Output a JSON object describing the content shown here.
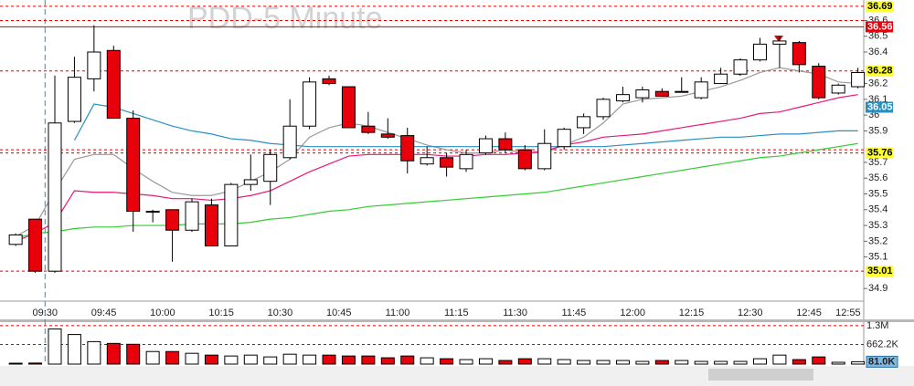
{
  "title": "PDD-5 Minute",
  "chart_data": {
    "type": "candlestick",
    "categories": [
      null,
      null,
      "09:30",
      null,
      null,
      "09:45",
      null,
      null,
      "10:00",
      null,
      null,
      "10:15",
      null,
      null,
      "10:30",
      null,
      null,
      "10:45",
      null,
      null,
      "11:00",
      null,
      null,
      "11:15",
      null,
      null,
      "11:30",
      null,
      null,
      "11:45",
      null,
      null,
      "12:00",
      null,
      null,
      "12:15",
      null,
      null,
      "12:30",
      null,
      null,
      "12:45",
      null,
      "12:55"
    ],
    "open": [
      35.18,
      35.34,
      35.01,
      35.96,
      36.23,
      36.41,
      35.98,
      35.39,
      35.4,
      35.27,
      35.43,
      35.17,
      35.56,
      35.58,
      35.73,
      35.93,
      36.23,
      36.18,
      35.93,
      35.88,
      35.87,
      35.69,
      35.73,
      35.66,
      35.76,
      35.85,
      35.78,
      35.66,
      35.8,
      35.92,
      35.99,
      36.09,
      36.11,
      36.15,
      36.15,
      36.11,
      36.2,
      36.26,
      36.35,
      36.45,
      36.46,
      36.31,
      36.14,
      36.18
    ],
    "high": [
      35.25,
      35.34,
      36.25,
      36.37,
      36.57,
      36.44,
      36.03,
      35.4,
      35.4,
      35.47,
      35.47,
      35.57,
      35.75,
      35.78,
      36.1,
      36.24,
      36.25,
      36.18,
      36.02,
      35.98,
      35.92,
      35.8,
      35.76,
      35.78,
      35.87,
      35.89,
      35.81,
      35.91,
      35.92,
      36.01,
      36.11,
      36.18,
      36.18,
      36.17,
      36.24,
      36.24,
      36.3,
      36.36,
      36.49,
      36.5,
      36.47,
      36.33,
      36.2,
      36.3
    ],
    "low": [
      35.17,
      35.0,
      35.0,
      35.95,
      36.15,
      35.98,
      35.26,
      35.32,
      35.07,
      35.26,
      35.17,
      35.17,
      35.52,
      35.43,
      35.72,
      35.91,
      36.19,
      35.92,
      35.88,
      35.85,
      35.63,
      35.68,
      35.61,
      35.64,
      35.75,
      35.76,
      35.65,
      35.65,
      35.78,
      35.88,
      35.97,
      36.08,
      36.08,
      36.12,
      36.15,
      36.1,
      36.2,
      36.25,
      36.34,
      36.3,
      36.27,
      36.1,
      36.13,
      36.17
    ],
    "close": [
      35.24,
      35.01,
      35.95,
      36.24,
      36.4,
      35.98,
      35.39,
      35.39,
      35.27,
      35.45,
      35.17,
      35.56,
      35.59,
      35.75,
      35.93,
      36.21,
      36.2,
      35.92,
      35.89,
      35.86,
      35.71,
      35.73,
      35.67,
      35.75,
      35.85,
      35.78,
      35.66,
      35.82,
      35.91,
      35.99,
      36.1,
      36.13,
      36.16,
      36.12,
      36.15,
      36.21,
      36.26,
      36.35,
      36.45,
      36.47,
      36.32,
      36.11,
      36.19,
      36.27
    ],
    "volume": [
      30000,
      35000,
      1190000,
      1000000,
      760000,
      700000,
      670000,
      425000,
      425000,
      365000,
      304000,
      274000,
      304000,
      243000,
      334000,
      304000,
      304000,
      274000,
      274000,
      213000,
      274000,
      213000,
      182000,
      152000,
      182000,
      122000,
      182000,
      182000,
      152000,
      122000,
      122000,
      122000,
      91000,
      122000,
      122000,
      91000,
      91000,
      91000,
      182000,
      304000,
      152000,
      243000,
      61000,
      81000
    ],
    "volume_last_label": "81.0K",
    "up_color": "#ffffff",
    "down_color": "#e8000b",
    "ylim": [
      34.82,
      36.73
    ],
    "yticks": [
      34.9,
      35.1,
      35.2,
      35.3,
      35.4,
      35.5,
      35.6,
      35.7,
      35.9,
      36,
      36.1,
      36.2,
      36.4,
      36.5,
      36.6
    ],
    "vlim": [
      0,
      1420000
    ],
    "vticks": [
      {
        "value": 1300000,
        "label": "1.3M"
      },
      {
        "value": 662200,
        "label": "662.2K"
      }
    ],
    "session_start_index": 2,
    "lines": [
      {
        "color": "#9a9a9a",
        "values": [
          35.23,
          35.3,
          35.52,
          35.72,
          35.75,
          35.75,
          35.66,
          35.58,
          35.51,
          35.49,
          35.49,
          35.52,
          35.58,
          35.64,
          35.72,
          35.86,
          35.92,
          35.95,
          35.93,
          35.89,
          35.85,
          35.81,
          35.78,
          35.76,
          35.76,
          35.78,
          35.76,
          35.76,
          35.81,
          35.86,
          35.95,
          36.07,
          36.1,
          36.11,
          36.12,
          36.15,
          36.18,
          36.22,
          36.27,
          36.3,
          36.28,
          36.26,
          36.21,
          36.2
        ]
      },
      {
        "color": "#e8187a",
        "values": [
          35.2,
          35.25,
          35.32,
          35.52,
          35.51,
          35.51,
          35.5,
          35.49,
          35.47,
          35.47,
          35.46,
          35.47,
          35.49,
          35.52,
          35.58,
          35.64,
          35.69,
          35.74,
          35.75,
          35.75,
          35.75,
          35.75,
          35.74,
          35.74,
          35.75,
          35.75,
          35.76,
          35.77,
          35.81,
          35.83,
          35.86,
          35.87,
          35.88,
          35.9,
          35.92,
          35.94,
          35.96,
          35.98,
          36.01,
          36.02,
          36.05,
          36.08,
          36.11,
          36.13
        ]
      },
      {
        "color": "#2a8fc0",
        "values": [
          null,
          null,
          null,
          35.84,
          36.07,
          36.05,
          36.01,
          35.97,
          35.93,
          35.9,
          35.88,
          35.85,
          35.84,
          35.82,
          35.81,
          35.8,
          35.8,
          35.8,
          35.8,
          35.8,
          35.8,
          35.8,
          35.8,
          35.8,
          35.8,
          35.8,
          35.8,
          35.8,
          35.8,
          35.8,
          35.8,
          35.81,
          35.82,
          35.83,
          35.84,
          35.85,
          35.86,
          35.86,
          35.87,
          35.88,
          35.88,
          35.89,
          35.9,
          35.9
        ]
      },
      {
        "color": "#33cc33",
        "values": [
          35.22,
          35.25,
          35.26,
          35.28,
          35.29,
          35.29,
          35.3,
          35.3,
          35.3,
          35.31,
          35.31,
          35.31,
          35.32,
          35.34,
          35.35,
          35.37,
          35.39,
          35.4,
          35.42,
          35.43,
          35.44,
          35.45,
          35.46,
          35.47,
          35.48,
          35.49,
          35.5,
          35.51,
          35.53,
          35.55,
          35.57,
          35.59,
          35.61,
          35.63,
          35.65,
          35.67,
          35.69,
          35.71,
          35.73,
          35.74,
          35.76,
          35.78,
          35.8,
          35.82
        ]
      }
    ],
    "level_color": "#e00000",
    "levels": [
      {
        "value": 36.69,
        "line": "dashed",
        "label_bg": "#ffff33",
        "label_color": "#000000"
      },
      {
        "value": 36.6,
        "line": "dashed"
      },
      {
        "value": 36.56,
        "line": "solid",
        "label_bg": "#e8000b",
        "label_color": "#ffffff"
      },
      {
        "value": 36.28,
        "line": "dashed",
        "label_bg": "#ffff33",
        "label_color": "#000000"
      },
      {
        "value": 36.05,
        "label_bg": "#2a8fc0",
        "label_color": "#ffffff"
      },
      {
        "value": 35.78,
        "line": "dashed"
      },
      {
        "value": 35.76,
        "line": "dashed",
        "label_bg": "#ffff33",
        "label_color": "#000000"
      },
      {
        "value": 35.01,
        "line": "dashed",
        "label_bg": "#ffff33",
        "label_color": "#000000"
      }
    ]
  }
}
